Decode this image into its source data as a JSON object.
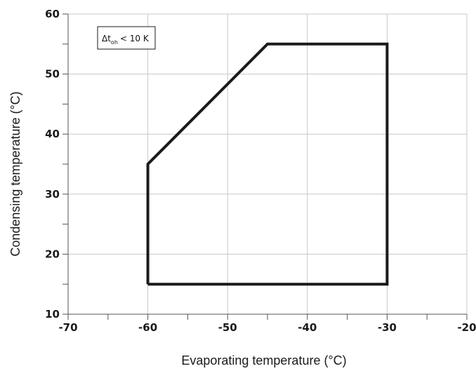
{
  "chart_data": {
    "type": "line",
    "xlabel": "Evaporating temperature (°C)",
    "ylabel": "Condensing temperature (°C)",
    "xlim": [
      -70,
      -20
    ],
    "ylim": [
      10,
      60
    ],
    "x_ticks": [
      -70,
      -60,
      -50,
      -40,
      -30,
      -20
    ],
    "y_ticks": [
      10,
      20,
      30,
      40,
      50,
      60
    ],
    "x_minor_step": 5,
    "y_minor_step": 5,
    "grid": true,
    "annotation": {
      "symbol": "Δt",
      "subscript": "oh",
      "condition": "< 10 K"
    },
    "series": [
      {
        "points": [
          [
            -60,
            15
          ],
          [
            -60,
            35
          ],
          [
            -45,
            55
          ],
          [
            -30,
            55
          ],
          [
            -30,
            15
          ],
          [
            -60,
            15
          ]
        ]
      }
    ],
    "colors": {
      "envelope": "#1a1a1a",
      "grid": "#c8c8c8",
      "axis": "#555555"
    }
  }
}
